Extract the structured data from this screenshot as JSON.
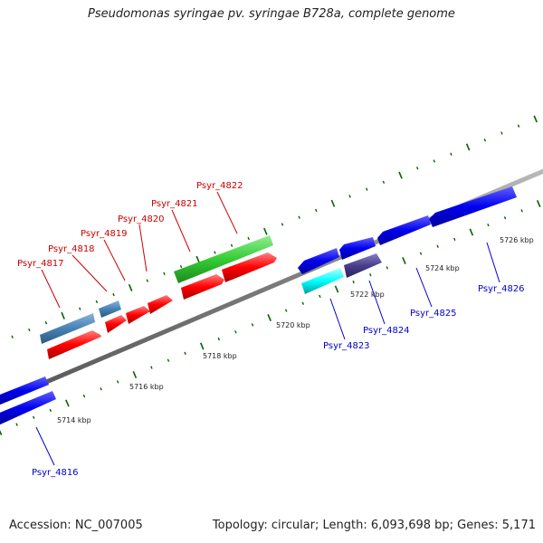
{
  "title": "Pseudomonas syringae pv. syringae B728a, complete genome",
  "footer": {
    "accession": "Accession: NC_007005",
    "summary": "Topology: circular; Length: 6,093,698 bp; Genes: 5,171"
  },
  "map": {
    "backbone_color": "#888888",
    "tick_color": "#006400",
    "tick_labels": [
      "5714 kbp",
      "5716 kbp",
      "5718 kbp",
      "5720 kbp",
      "5722 kbp",
      "5724 kbp",
      "5726 kbp"
    ],
    "forward_label_color": "#cc0000",
    "reverse_label_color": "#0000cc",
    "gene_labels_forward": [
      "Psyr_4817",
      "Psyr_4818",
      "Psyr_4819",
      "Psyr_4820",
      "Psyr_4821",
      "Psyr_4822"
    ],
    "gene_labels_reverse": [
      "Psyr_4816",
      "Psyr_4823",
      "Psyr_4824",
      "Psyr_4825",
      "Psyr_4826"
    ],
    "feature_colors": {
      "cds": "#ff0000",
      "gene_blue": "#0000ee",
      "steelblue": "#4682b4",
      "green": "#33cc33",
      "cyan": "#00ffff",
      "slate": "#483d8b"
    }
  }
}
